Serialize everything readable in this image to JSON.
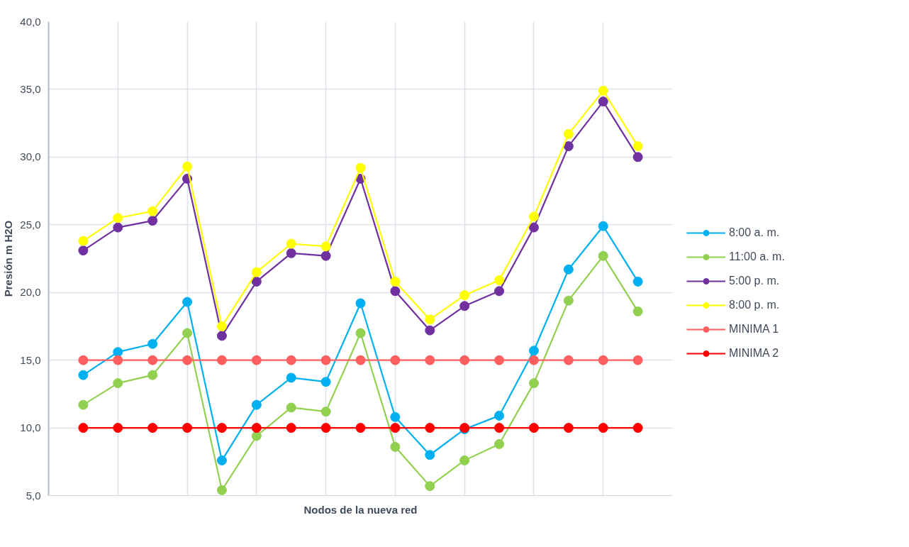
{
  "chart_data": {
    "type": "line",
    "xlabel": "Nodos de la nueva red",
    "ylabel": "Presión m H2O",
    "categories": [
      null,
      null,
      null,
      null,
      null,
      null,
      null,
      null,
      null,
      null,
      null,
      null,
      null,
      null,
      null,
      null,
      null
    ],
    "ylim": [
      5,
      40
    ],
    "yticks": [
      {
        "value": 5,
        "label": "5,0"
      },
      {
        "value": 10,
        "label": "10,0"
      },
      {
        "value": 15,
        "label": "15,0"
      },
      {
        "value": 20,
        "label": "20,0"
      },
      {
        "value": 25,
        "label": "25,0"
      },
      {
        "value": 30,
        "label": "30,0"
      },
      {
        "value": 35,
        "label": "35,0"
      },
      {
        "value": 40,
        "label": "40,0"
      }
    ],
    "grid": true,
    "legend": "right",
    "marker": "circle",
    "line_style": "solid",
    "series": [
      {
        "name": "8:00 a. m.",
        "color": "#00b0f0",
        "values": [
          13.9,
          15.6,
          16.2,
          19.3,
          7.6,
          11.7,
          13.7,
          13.4,
          19.2,
          10.8,
          8.0,
          9.9,
          10.9,
          15.7,
          21.7,
          24.9,
          20.8
        ]
      },
      {
        "name": "11:00 a. m.",
        "color": "#92d050",
        "values": [
          11.7,
          13.3,
          13.9,
          17.0,
          5.4,
          9.4,
          11.5,
          11.2,
          17.0,
          8.6,
          5.7,
          7.6,
          8.8,
          13.3,
          19.4,
          22.7,
          18.6
        ]
      },
      {
        "name": "5:00 p. m.",
        "color": "#7030a0",
        "values": [
          23.1,
          24.8,
          25.3,
          28.4,
          16.8,
          20.8,
          22.9,
          22.7,
          28.4,
          20.1,
          17.2,
          19.0,
          20.1,
          24.8,
          30.8,
          34.1,
          30.0
        ]
      },
      {
        "name": "8:00 p. m.",
        "color": "#ffff00",
        "values": [
          23.8,
          25.5,
          26.0,
          29.3,
          17.5,
          21.5,
          23.6,
          23.4,
          29.2,
          20.8,
          18.0,
          19.8,
          20.9,
          25.6,
          31.7,
          34.9,
          30.8
        ]
      },
      {
        "name": "MINIMA 1",
        "color": "#ff5f5f",
        "values": [
          15,
          15,
          15,
          15,
          15,
          15,
          15,
          15,
          15,
          15,
          15,
          15,
          15,
          15,
          15,
          15,
          15
        ]
      },
      {
        "name": "MINIMA 2",
        "color": "#ff0000",
        "values": [
          10,
          10,
          10,
          10,
          10,
          10,
          10,
          10,
          10,
          10,
          10,
          10,
          10,
          10,
          10,
          10,
          10
        ]
      }
    ]
  }
}
